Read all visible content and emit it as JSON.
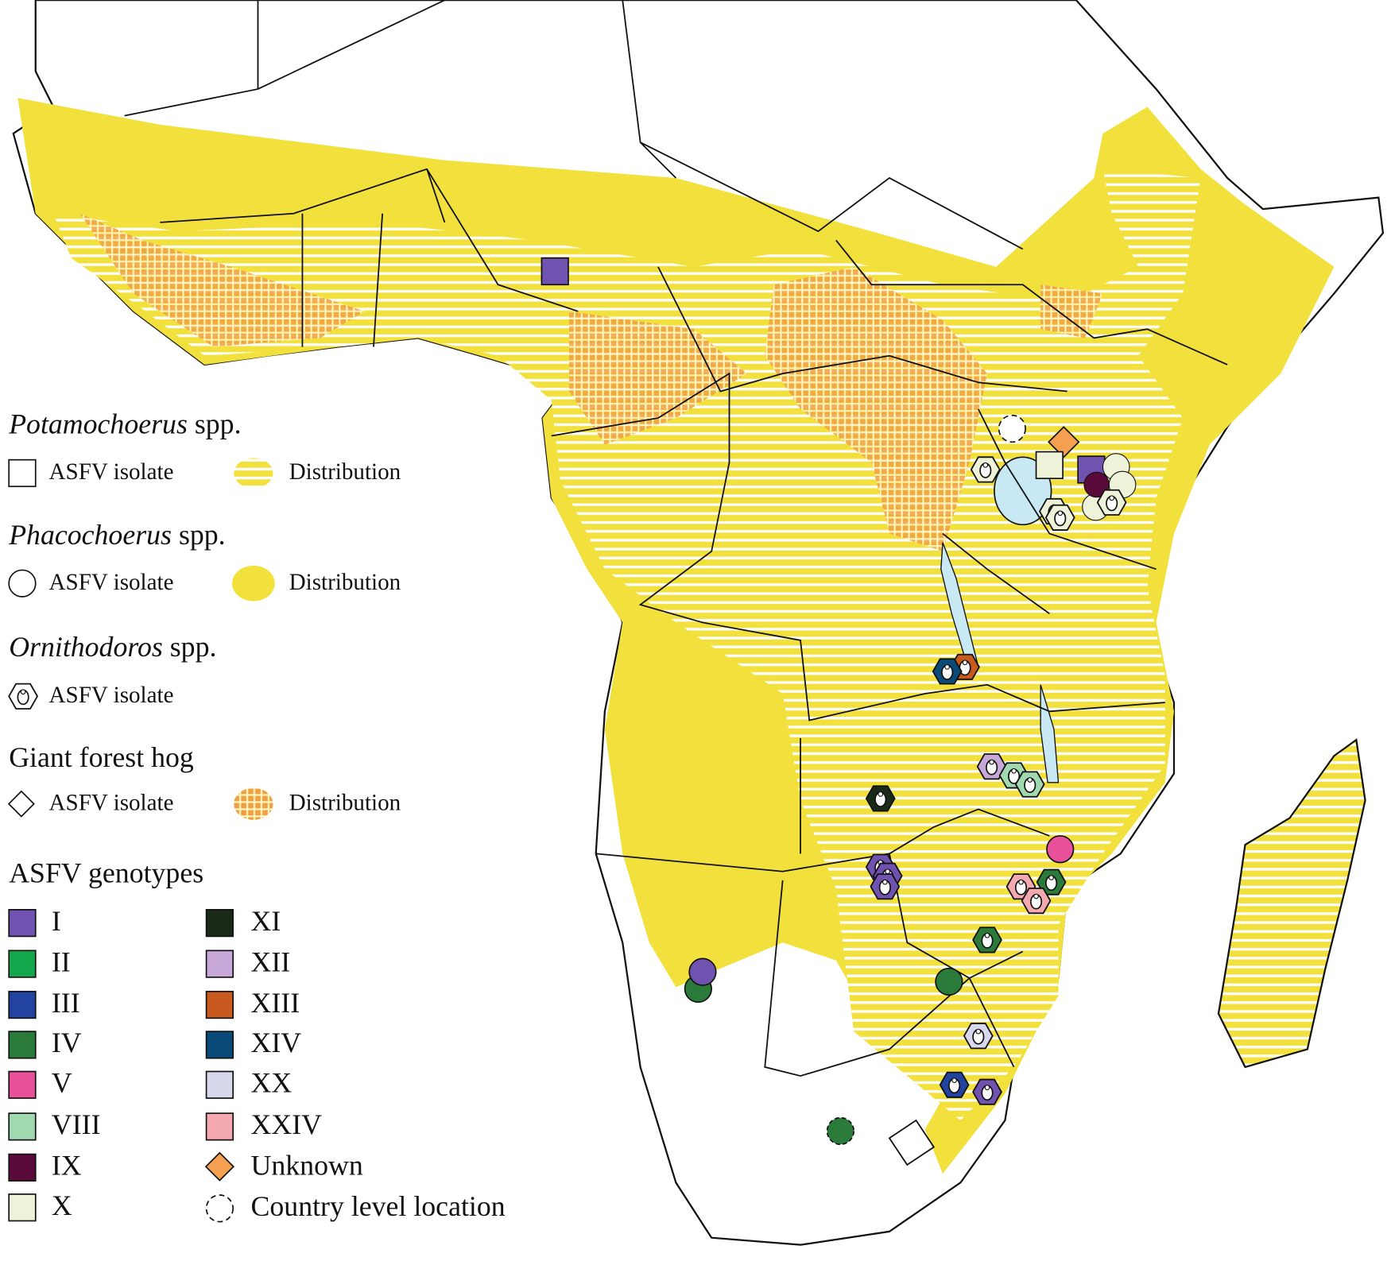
{
  "legend": {
    "species": [
      {
        "genus": "Potamochoerus",
        "suffix": "spp.",
        "isolate": "ASFV isolate",
        "distribution": "Distribution"
      },
      {
        "genus": "Phacochoerus",
        "suffix": "spp.",
        "isolate": "ASFV isolate",
        "distribution": "Distribution"
      },
      {
        "genus": "Ornithodoros",
        "suffix": "spp.",
        "isolate": "ASFV isolate"
      },
      {
        "name": "Giant forest hog",
        "isolate": "ASFV isolate",
        "distribution": "Distribution"
      }
    ],
    "genotypes_title": "ASFV genotypes",
    "genotypes": [
      "I",
      "II",
      "III",
      "IV",
      "V",
      "VIII",
      "IX",
      "X",
      "XI",
      "XII",
      "XIII",
      "XIV",
      "XX",
      "XXIV"
    ],
    "unknown": "Unknown",
    "country_level": "Country level location"
  }
}
